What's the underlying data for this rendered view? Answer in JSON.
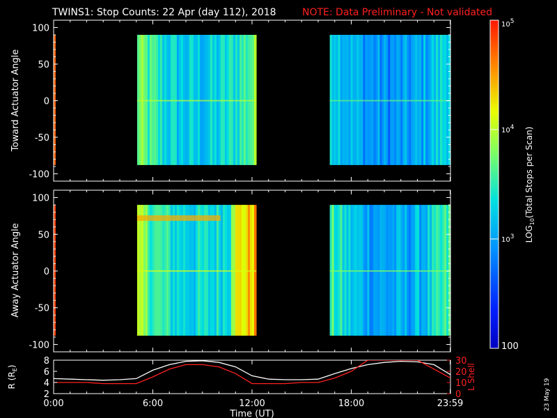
{
  "title": "TWINS1: Stop Counts: 22 Apr (day 112), 2018",
  "note": "NOTE: Data Preliminary - Not validated",
  "colors": {
    "background": "#000000",
    "axes": "#ffffff",
    "note": "#ff2020",
    "lshell": "#ff2020",
    "radius": "#ffffff"
  },
  "colorbar": {
    "label_pre": "LOG",
    "label_sub": "10",
    "label_post": "(Total Stops per Scan)",
    "ticks": [
      {
        "base": "10",
        "exp": "5"
      },
      {
        "base": "10",
        "exp": "4"
      },
      {
        "base": "10",
        "exp": "3"
      },
      {
        "base": "100",
        "exp": ""
      }
    ]
  },
  "footer": {
    "date_stamp": "23 May 19"
  },
  "chart_data": [
    {
      "type": "heatmap",
      "ylabel": "Toward Actuator Angle",
      "ylim": [
        -110,
        110
      ],
      "yticks": [
        "100",
        "50",
        "0",
        "-50",
        "-100"
      ],
      "xlim_hours": [
        0,
        24
      ],
      "angle_range": [
        -88,
        90
      ],
      "z_scale": "log10",
      "z_range": [
        100,
        100000
      ],
      "data_blocks": [
        {
          "start_hour": 0.0,
          "end_hour": 0.1,
          "mean_log10": 4.1
        },
        {
          "start_hour": 5.05,
          "end_hour": 12.25,
          "mean_log10": 3.2
        },
        {
          "start_hour": 16.7,
          "end_hour": 24.0,
          "mean_log10": 2.9
        }
      ]
    },
    {
      "type": "heatmap",
      "ylabel": "Away Actuator Angle",
      "ylim": [
        -110,
        110
      ],
      "yticks": [
        "100",
        "50",
        "0",
        "-50",
        "-100"
      ],
      "xlim_hours": [
        0,
        24
      ],
      "angle_range": [
        -88,
        90
      ],
      "z_scale": "log10",
      "z_range": [
        100,
        100000
      ],
      "data_blocks": [
        {
          "start_hour": 0.0,
          "end_hour": 0.1,
          "mean_log10": 4.2
        },
        {
          "start_hour": 5.05,
          "end_hour": 12.25,
          "mean_log10": 3.3
        },
        {
          "start_hour": 16.7,
          "end_hour": 24.0,
          "mean_log10": 3.0
        }
      ]
    },
    {
      "type": "line",
      "xlabel": "Time (UT)",
      "xtick_labels": [
        "0:00",
        "6:00",
        "12:00",
        "18:00",
        "23:59"
      ],
      "xtick_hours": [
        0,
        6,
        12,
        18,
        23.98
      ],
      "left_axis": {
        "label_pre": "R (R",
        "label_sub": "E",
        "label_post": ")",
        "ylim": [
          2,
          8
        ],
        "ticks": [
          "8",
          "6",
          "4",
          "2"
        ]
      },
      "right_axis": {
        "label": "L Shell",
        "ylim": [
          0,
          30
        ],
        "ticks": [
          "30",
          "20",
          "10",
          "0"
        ]
      },
      "series": [
        {
          "axis": "left",
          "x": [
            0,
            1,
            2,
            3,
            4,
            5,
            6,
            7,
            8,
            9,
            10,
            11,
            12,
            13,
            14,
            15,
            16,
            17,
            18,
            19,
            20,
            21,
            22,
            23,
            24
          ],
          "y": [
            4.7,
            4.6,
            4.5,
            4.4,
            4.5,
            4.7,
            6.2,
            7.2,
            7.8,
            7.9,
            7.6,
            6.8,
            5.2,
            4.6,
            4.5,
            4.5,
            4.6,
            5.6,
            6.5,
            7.2,
            7.6,
            7.8,
            7.7,
            7.2,
            5.4
          ]
        },
        {
          "axis": "right",
          "x": [
            0,
            1,
            2,
            3,
            4,
            5,
            6,
            7,
            8,
            9,
            10,
            11,
            12,
            13,
            14,
            15,
            16,
            17,
            18,
            19,
            20,
            21,
            22,
            23,
            24
          ],
          "y": [
            10,
            10,
            10,
            9,
            9,
            9,
            15,
            22,
            26,
            26,
            24,
            18,
            9,
            9,
            9,
            10,
            10,
            14,
            20,
            30,
            30,
            30,
            30,
            22,
            14
          ]
        }
      ]
    }
  ]
}
